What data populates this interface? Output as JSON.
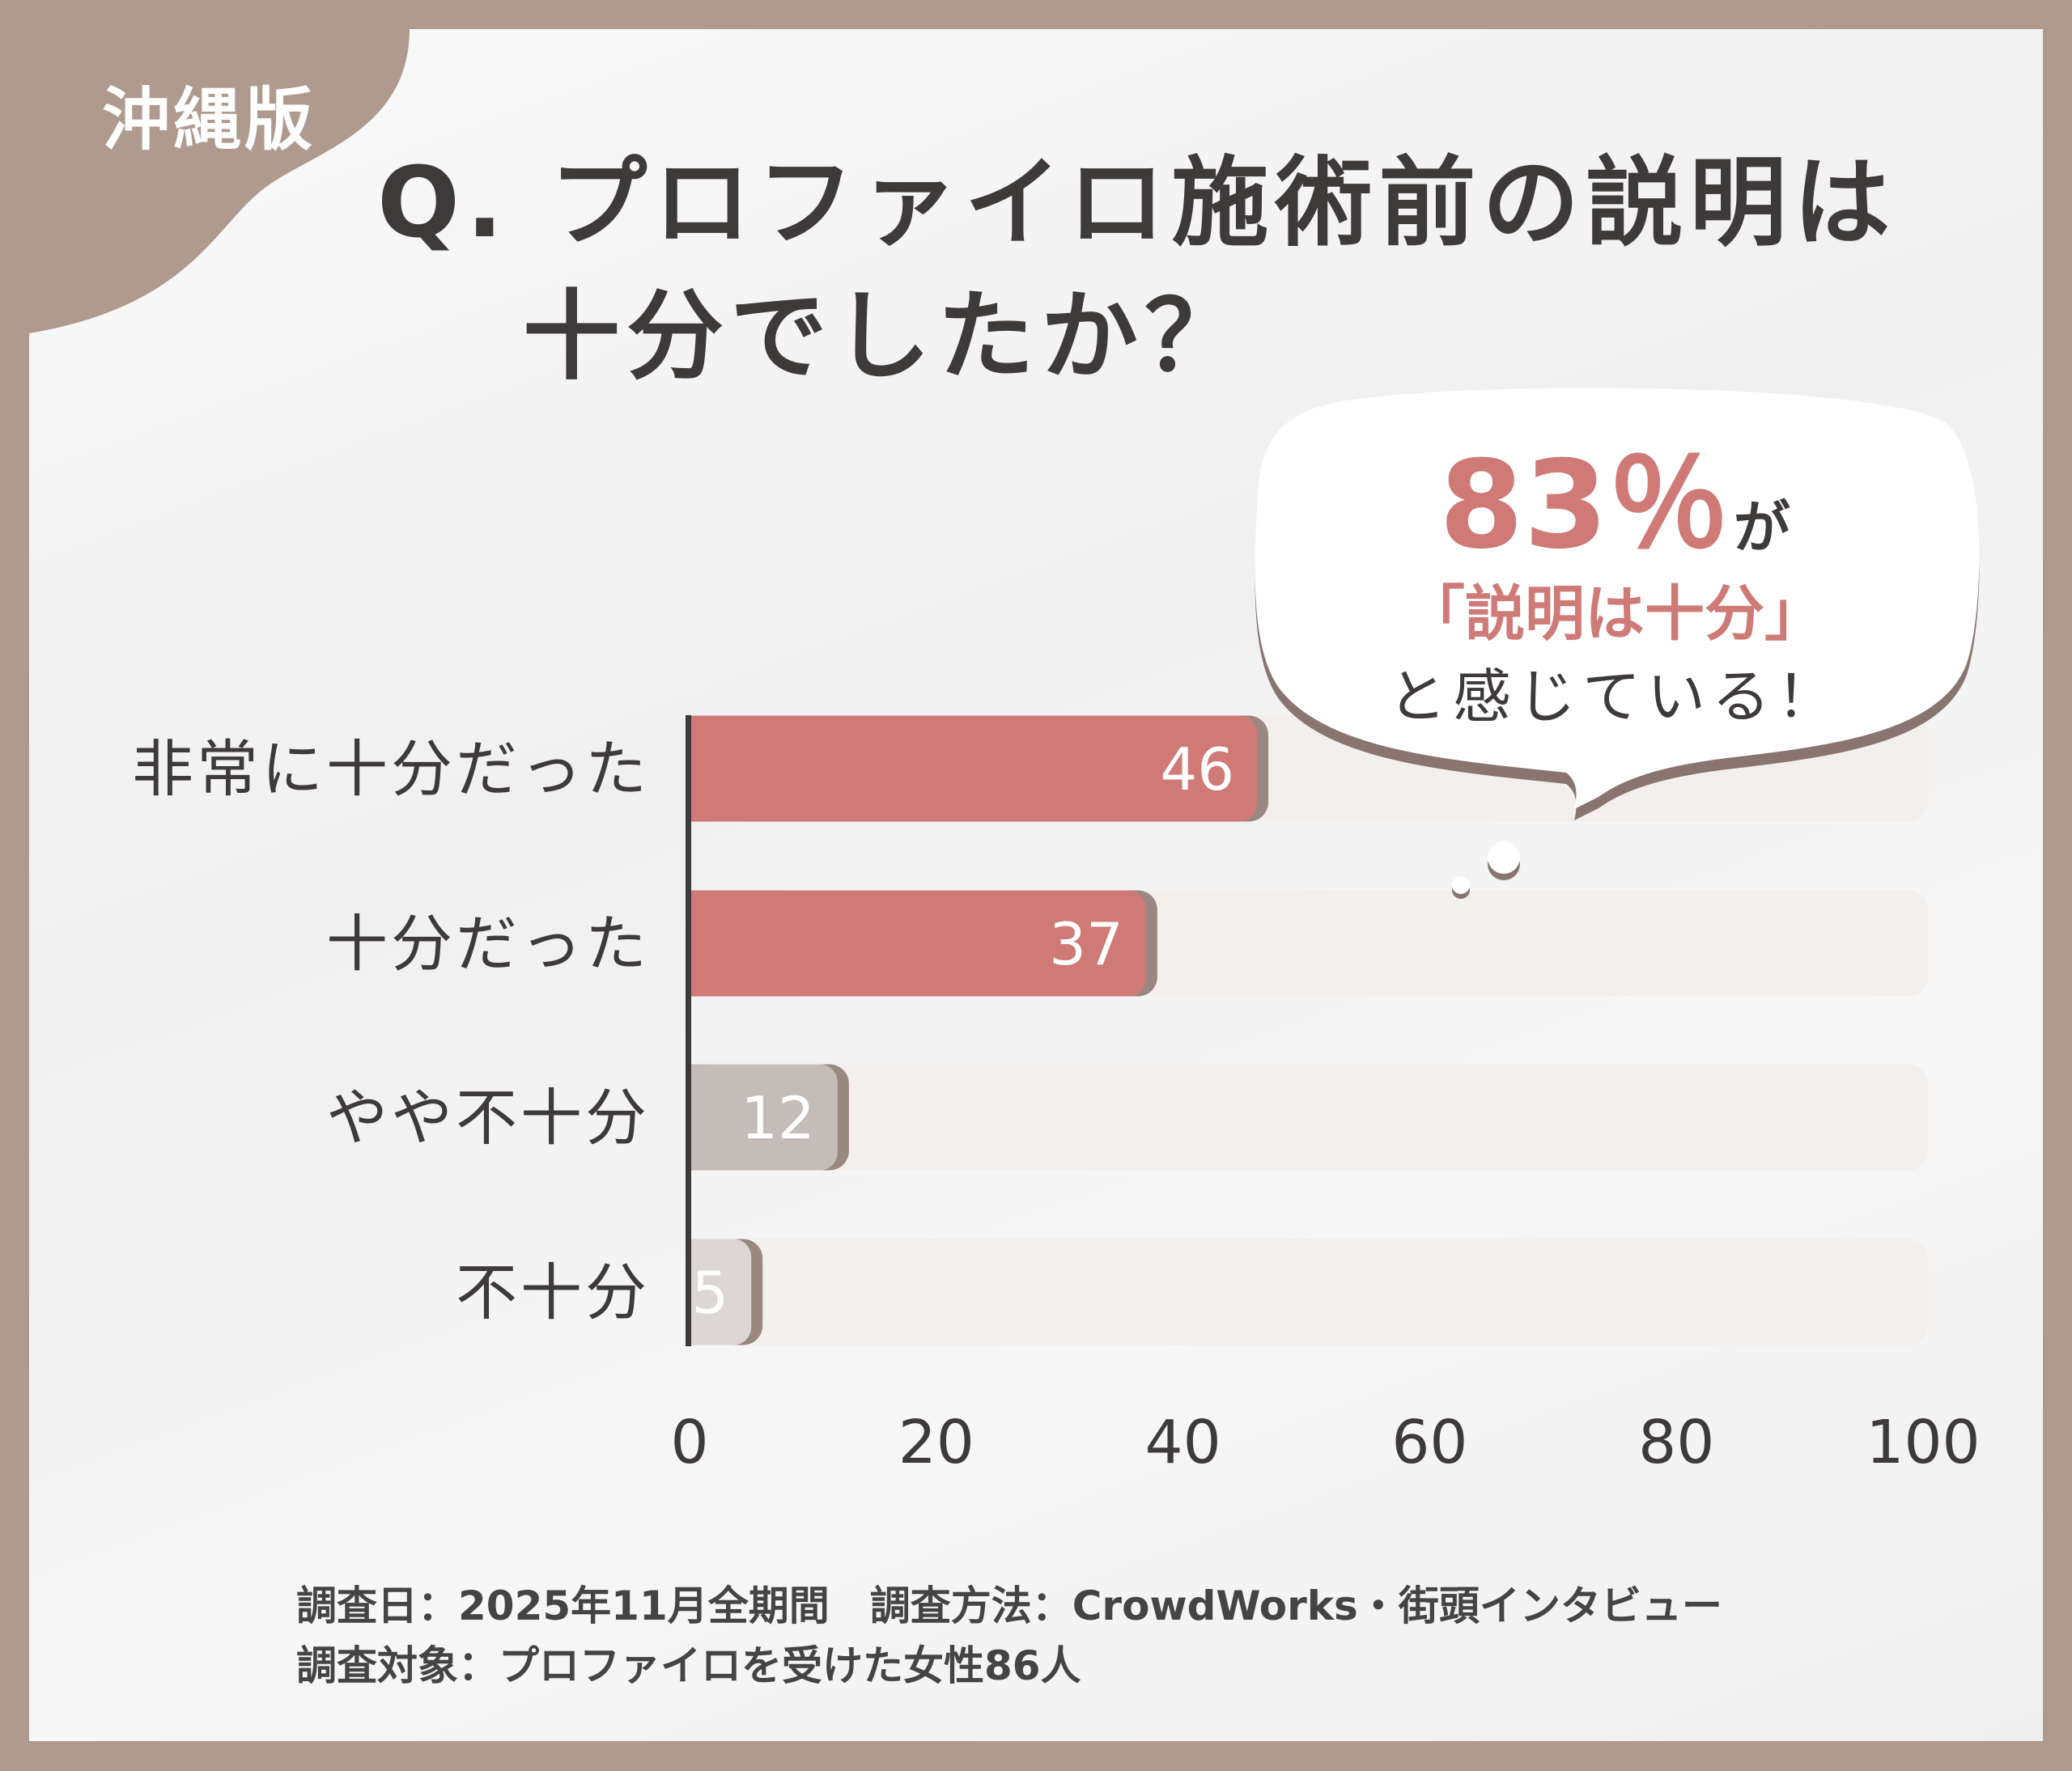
{
  "region_badge": "沖縄版",
  "title": {
    "line1": "Q. プロファイロ施術前の説明は",
    "line2": "十分でしたか？"
  },
  "callout": {
    "percent": "83％",
    "particle": "が",
    "quote": "「説明は十分」",
    "tail": "と感じている！"
  },
  "colors": {
    "accent": "#cf7a76",
    "gray": "#c4bcb8",
    "light_gray": "#dcd6d4",
    "track": "#f3efec",
    "frame": "#b09a8e",
    "shadow": "#8a7470"
  },
  "chart_data": {
    "type": "bar",
    "orientation": "horizontal",
    "categories": [
      "非常に十分だった",
      "十分だった",
      "やや不十分",
      "不十分"
    ],
    "values": [
      46,
      37,
      12,
      5
    ],
    "bar_colors": [
      "#cf7a76",
      "#cf7a76",
      "#c4bcb8",
      "#dcd6d4"
    ],
    "xlim": [
      0,
      100
    ],
    "x_ticks": [
      "0",
      "20",
      "40",
      "60",
      "80",
      "100"
    ],
    "grid": false
  },
  "footer": {
    "line1": "調査日：2025年11月全期間　調査方法：CrowdWorks・街頭インタビュー",
    "line2": "調査対象：プロファイロを受けた女性86人"
  }
}
